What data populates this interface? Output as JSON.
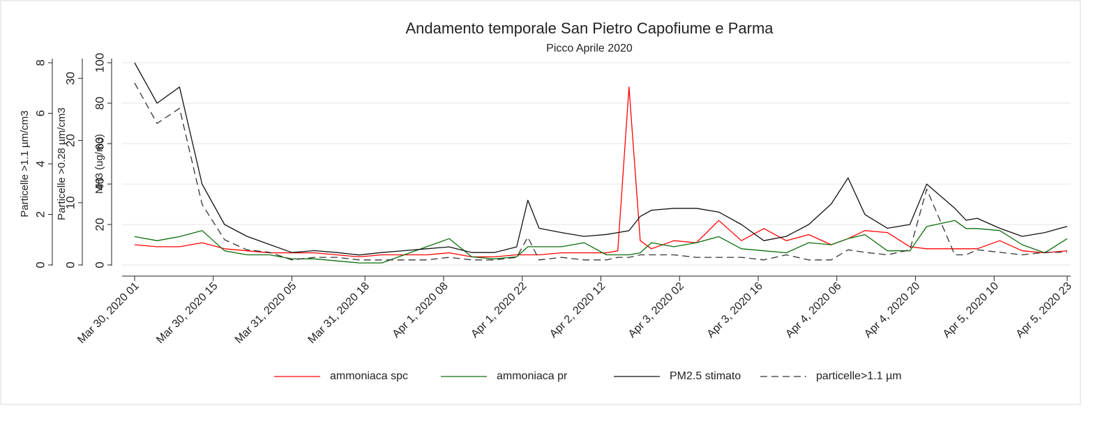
{
  "chart_data": {
    "type": "line",
    "title": "Andamento temporale San Pietro Capofiume e Parma",
    "subtitle": "Picco Aprile 2020",
    "y_label": "NH3 (ug/m3)",
    "y2_label": "Particelle >0.28 µm/cm3",
    "y3_label": "Particelle >1.1 µm/cm3",
    "grid": true,
    "legend_position": "bottom",
    "xlim": [
      "2020-03-30T01:00Z",
      "2020-04-05T23:00Z"
    ],
    "xticks": [
      {
        "value": "2020-03-30T01:00Z",
        "label": "Mar 30, 2020 01"
      },
      {
        "value": "2020-03-30T15:00Z",
        "label": "Mar 30, 2020 15"
      },
      {
        "value": "2020-03-31T05:00Z",
        "label": "Mar 31, 2020 05"
      },
      {
        "value": "2020-03-31T18:00Z",
        "label": "Mar 31, 2020 18"
      },
      {
        "value": "2020-04-01T08:00Z",
        "label": "Apr 1, 2020 08"
      },
      {
        "value": "2020-04-01T22:00Z",
        "label": "Apr 1, 2020 22"
      },
      {
        "value": "2020-04-02T12:00Z",
        "label": "Apr 2, 2020 12"
      },
      {
        "value": "2020-04-03T02:00Z",
        "label": "Apr 3, 2020 02"
      },
      {
        "value": "2020-04-03T16:00Z",
        "label": "Apr 3, 2020 16"
      },
      {
        "value": "2020-04-04T06:00Z",
        "label": "Apr 4, 2020 06"
      },
      {
        "value": "2020-04-04T20:00Z",
        "label": "Apr 4, 2020 20"
      },
      {
        "value": "2020-04-05T10:00Z",
        "label": "Apr 5, 2020 10"
      },
      {
        "value": "2020-04-05T23:00Z",
        "label": "Apr 5, 2020 23"
      }
    ],
    "ylim": [
      0,
      100
    ],
    "yticks": [
      0,
      20,
      40,
      60,
      80,
      100
    ],
    "y2lim": [
      0,
      32.5
    ],
    "y2ticks": [
      0,
      10,
      20,
      30
    ],
    "y3lim": [
      0,
      8
    ],
    "y3ticks": [
      0,
      2,
      4,
      6,
      8
    ],
    "x": [
      "2020-03-30T01:00Z",
      "2020-03-30T05:00Z",
      "2020-03-30T09:00Z",
      "2020-03-30T13:00Z",
      "2020-03-30T17:00Z",
      "2020-03-30T21:00Z",
      "2020-03-31T01:00Z",
      "2020-03-31T05:00Z",
      "2020-03-31T09:00Z",
      "2020-03-31T13:00Z",
      "2020-03-31T17:00Z",
      "2020-03-31T21:00Z",
      "2020-04-01T01:00Z",
      "2020-04-01T05:00Z",
      "2020-04-01T09:00Z",
      "2020-04-01T13:00Z",
      "2020-04-01T17:00Z",
      "2020-04-01T21:00Z",
      "2020-04-01T23:00Z",
      "2020-04-02T01:00Z",
      "2020-04-02T05:00Z",
      "2020-04-02T09:00Z",
      "2020-04-02T13:00Z",
      "2020-04-02T15:00Z",
      "2020-04-02T17:00Z",
      "2020-04-02T19:00Z",
      "2020-04-02T21:00Z",
      "2020-04-03T01:00Z",
      "2020-04-03T05:00Z",
      "2020-04-03T09:00Z",
      "2020-04-03T13:00Z",
      "2020-04-03T17:00Z",
      "2020-04-03T21:00Z",
      "2020-04-04T01:00Z",
      "2020-04-04T05:00Z",
      "2020-04-04T08:00Z",
      "2020-04-04T11:00Z",
      "2020-04-04T15:00Z",
      "2020-04-04T19:00Z",
      "2020-04-04T22:00Z",
      "2020-04-05T03:00Z",
      "2020-04-05T05:00Z",
      "2020-04-05T07:00Z",
      "2020-04-05T11:00Z",
      "2020-04-05T15:00Z",
      "2020-04-05T19:00Z",
      "2020-04-05T23:00Z"
    ],
    "series": [
      {
        "name": "ammoniaca spc",
        "color": "#ff0000",
        "line_style": "solid",
        "values": [
          10,
          9,
          9,
          11,
          8,
          7,
          6,
          6,
          6,
          5,
          4,
          5,
          5,
          5,
          6,
          4,
          4,
          5,
          5,
          5,
          6,
          6,
          6,
          7,
          88,
          12,
          8,
          12,
          11,
          22,
          12,
          18,
          12,
          15,
          10,
          13,
          17,
          16,
          9,
          8,
          8,
          8,
          8,
          12,
          7,
          6,
          7
        ]
      },
      {
        "name": "ammoniaca pr",
        "color": "#0a6e0a",
        "line_style": "solid",
        "values": [
          14,
          12,
          14,
          17,
          7,
          5,
          5,
          3,
          3,
          2,
          1,
          1,
          5,
          9,
          13,
          4,
          3,
          4,
          9,
          9,
          9,
          11,
          5,
          5,
          5,
          6,
          11,
          9,
          11,
          14,
          8,
          7,
          6,
          11,
          10,
          13,
          15,
          7,
          7,
          19,
          22,
          18,
          18,
          17,
          10,
          6,
          13
        ]
      },
      {
        "name": "PM2.5 stimato",
        "color": "#111111",
        "line_style": "solid",
        "axis": "y2",
        "values": [
          32.5,
          26,
          28.6,
          13,
          6.5,
          4.6,
          3.3,
          2,
          2.3,
          2,
          1.6,
          2,
          2.3,
          2.6,
          2.9,
          2,
          2,
          2.9,
          10.4,
          5.9,
          5.2,
          4.6,
          4.9,
          5.2,
          5.5,
          7.8,
          8.8,
          9.1,
          9.1,
          8.5,
          6.5,
          3.9,
          4.6,
          6.5,
          9.8,
          14,
          8.1,
          5.9,
          6.5,
          13,
          9.1,
          7.2,
          7.5,
          5.9,
          4.6,
          5.2,
          6.2
        ]
      },
      {
        "name": "particelle>1.1 µm",
        "color": "#333333",
        "line_style": "dashed",
        "axis": "y3",
        "values": [
          7.2,
          5.6,
          6.2,
          2.4,
          1,
          0.6,
          0.5,
          0.2,
          0.3,
          0.3,
          0.2,
          0.2,
          0.2,
          0.2,
          0.3,
          0.2,
          0.2,
          0.3,
          1.1,
          0.2,
          0.3,
          0.2,
          0.2,
          0.3,
          0.3,
          0.4,
          0.4,
          0.4,
          0.3,
          0.3,
          0.3,
          0.2,
          0.4,
          0.2,
          0.2,
          0.6,
          0.5,
          0.4,
          0.6,
          3,
          0.4,
          0.4,
          0.6,
          0.5,
          0.4,
          0.5,
          0.5
        ]
      }
    ]
  }
}
